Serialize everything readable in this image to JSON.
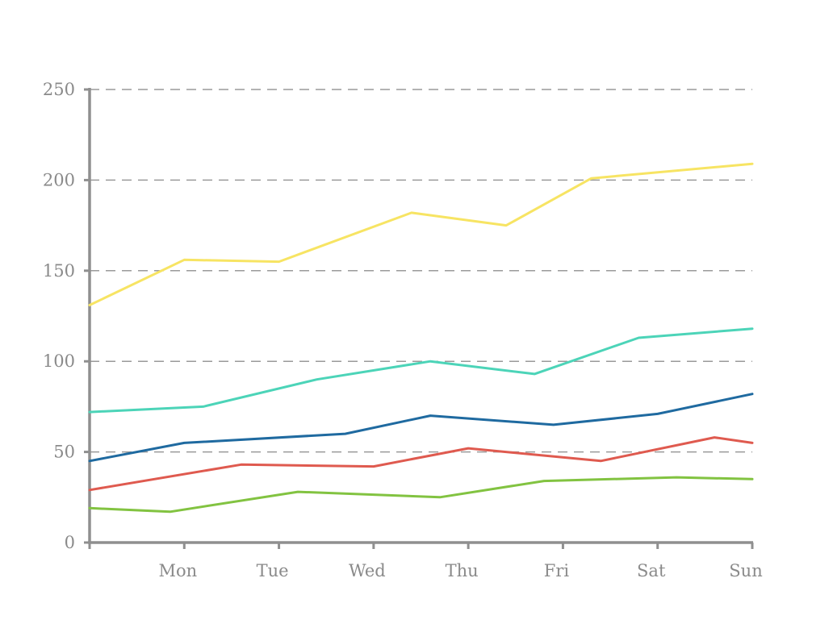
{
  "chart_data": {
    "type": "line",
    "title": "",
    "xlabel": "",
    "ylabel": "",
    "categories": [
      "Mon",
      "Tue",
      "Wed",
      "Thu",
      "Fri",
      "Sat",
      "Sun"
    ],
    "ylim": [
      0,
      250
    ],
    "yticks": [
      0,
      50,
      100,
      150,
      200,
      250
    ],
    "grid": "horizontal dashed",
    "legend": "none",
    "series": [
      {
        "color": "#f7e463",
        "values": [
          131,
          156,
          155,
          182,
          175,
          201,
          209
        ]
      },
      {
        "color": "#4cd4b8",
        "values": [
          72,
          75,
          90,
          100,
          93,
          113,
          118
        ]
      },
      {
        "color": "#1f6aa0",
        "values": [
          45,
          55,
          60,
          70,
          65,
          71,
          82
        ]
      },
      {
        "color": "#df5a4f",
        "values": [
          29,
          43,
          42,
          52,
          45,
          58,
          55
        ]
      },
      {
        "color": "#82c341",
        "values": [
          19,
          17,
          28,
          25,
          34,
          36,
          35
        ]
      }
    ],
    "points": [
      [
        [
          0,
          131
        ],
        [
          1,
          156
        ],
        [
          2,
          155
        ],
        [
          3.4,
          182
        ],
        [
          4.4,
          175
        ],
        [
          5.3,
          201
        ],
        [
          7,
          209
        ]
      ],
      [
        [
          0,
          72
        ],
        [
          1.2,
          75
        ],
        [
          2.4,
          90
        ],
        [
          3.6,
          100
        ],
        [
          4.7,
          93
        ],
        [
          5.8,
          113
        ],
        [
          7,
          118
        ]
      ],
      [
        [
          0,
          45
        ],
        [
          1,
          55
        ],
        [
          2.7,
          60
        ],
        [
          3.6,
          70
        ],
        [
          4.9,
          65
        ],
        [
          6,
          71
        ],
        [
          7,
          82
        ]
      ],
      [
        [
          0,
          29
        ],
        [
          1.6,
          43
        ],
        [
          3,
          42
        ],
        [
          4,
          52
        ],
        [
          5.4,
          45
        ],
        [
          6.6,
          58
        ],
        [
          7,
          55
        ]
      ],
      [
        [
          0,
          19
        ],
        [
          0.85,
          17
        ],
        [
          2.2,
          28
        ],
        [
          3.7,
          25
        ],
        [
          4.8,
          34
        ],
        [
          6.2,
          36
        ],
        [
          7,
          35
        ]
      ]
    ]
  }
}
